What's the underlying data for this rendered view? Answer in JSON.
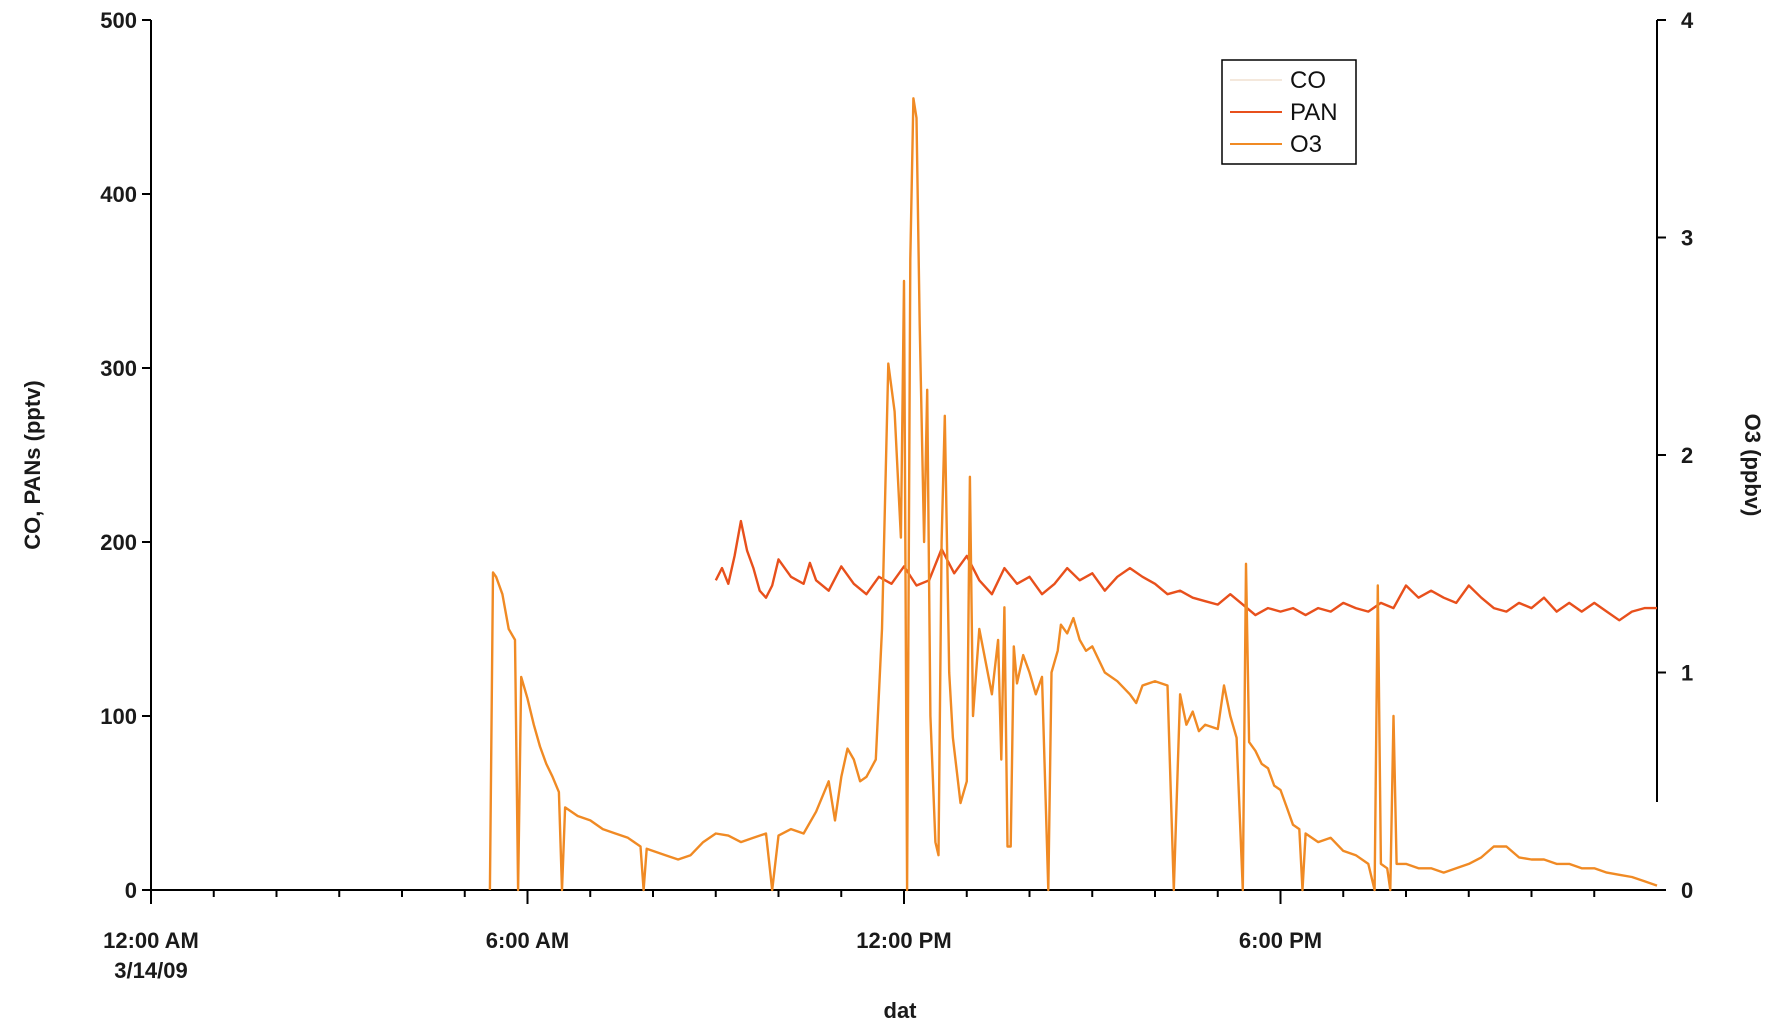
{
  "chart_data": {
    "type": "line",
    "title": "",
    "xlabel": "dat",
    "ylabel_left": "CO, PANs (pptv)",
    "ylabel_right": "O3 (ppbv)",
    "x_range": [
      "2009-03-14 00:00",
      "2009-03-15 00:00"
    ],
    "xlim_hours": [
      0,
      24
    ],
    "ylim_left": [
      0,
      500
    ],
    "ylim_right": [
      0,
      4
    ],
    "x_ticks": [
      {
        "hour": 0,
        "line1": "12:00 AM",
        "line2": "3/14/09"
      },
      {
        "hour": 6,
        "line1": "6:00 AM",
        "line2": ""
      },
      {
        "hour": 12,
        "line1": "12:00 PM",
        "line2": ""
      },
      {
        "hour": 18,
        "line1": "6:00 PM",
        "line2": ""
      }
    ],
    "y_ticks_left": [
      0,
      100,
      200,
      300,
      400,
      500
    ],
    "y_ticks_right": [
      0,
      1,
      2,
      3,
      4
    ],
    "legend": {
      "position": "top-right",
      "entries": [
        "CO",
        "PAN",
        "O3"
      ]
    },
    "series": [
      {
        "name": "CO",
        "axis": "left",
        "color": "#f4e8dc",
        "points": []
      },
      {
        "name": "PAN",
        "axis": "left",
        "color": "#e8501c",
        "points": [
          [
            9.0,
            178
          ],
          [
            9.1,
            185
          ],
          [
            9.2,
            176
          ],
          [
            9.3,
            192
          ],
          [
            9.4,
            212
          ],
          [
            9.5,
            195
          ],
          [
            9.6,
            185
          ],
          [
            9.7,
            172
          ],
          [
            9.8,
            168
          ],
          [
            9.9,
            175
          ],
          [
            10.0,
            190
          ],
          [
            10.2,
            180
          ],
          [
            10.4,
            176
          ],
          [
            10.5,
            188
          ],
          [
            10.6,
            178
          ],
          [
            10.8,
            172
          ],
          [
            11.0,
            186
          ],
          [
            11.2,
            176
          ],
          [
            11.4,
            170
          ],
          [
            11.6,
            180
          ],
          [
            11.8,
            176
          ],
          [
            12.0,
            186
          ],
          [
            12.2,
            175
          ],
          [
            12.4,
            178
          ],
          [
            12.6,
            196
          ],
          [
            12.8,
            182
          ],
          [
            13.0,
            192
          ],
          [
            13.2,
            178
          ],
          [
            13.4,
            170
          ],
          [
            13.6,
            185
          ],
          [
            13.8,
            176
          ],
          [
            14.0,
            180
          ],
          [
            14.2,
            170
          ],
          [
            14.4,
            176
          ],
          [
            14.6,
            185
          ],
          [
            14.8,
            178
          ],
          [
            15.0,
            182
          ],
          [
            15.2,
            172
          ],
          [
            15.4,
            180
          ],
          [
            15.6,
            185
          ],
          [
            15.8,
            180
          ],
          [
            16.0,
            176
          ],
          [
            16.2,
            170
          ],
          [
            16.4,
            172
          ],
          [
            16.6,
            168
          ],
          [
            16.8,
            166
          ],
          [
            17.0,
            164
          ],
          [
            17.2,
            170
          ],
          [
            17.4,
            164
          ],
          [
            17.6,
            158
          ],
          [
            17.8,
            162
          ],
          [
            18.0,
            160
          ],
          [
            18.2,
            162
          ],
          [
            18.4,
            158
          ],
          [
            18.6,
            162
          ],
          [
            18.8,
            160
          ],
          [
            19.0,
            165
          ],
          [
            19.2,
            162
          ],
          [
            19.4,
            160
          ],
          [
            19.6,
            165
          ],
          [
            19.8,
            162
          ],
          [
            20.0,
            175
          ],
          [
            20.2,
            168
          ],
          [
            20.4,
            172
          ],
          [
            20.6,
            168
          ],
          [
            20.8,
            165
          ],
          [
            21.0,
            175
          ],
          [
            21.2,
            168
          ],
          [
            21.4,
            162
          ],
          [
            21.6,
            160
          ],
          [
            21.8,
            165
          ],
          [
            22.0,
            162
          ],
          [
            22.2,
            168
          ],
          [
            22.4,
            160
          ],
          [
            22.6,
            165
          ],
          [
            22.8,
            160
          ],
          [
            23.0,
            165
          ],
          [
            23.2,
            160
          ],
          [
            23.4,
            155
          ],
          [
            23.6,
            160
          ],
          [
            23.8,
            162
          ],
          [
            24.0,
            162
          ]
        ]
      },
      {
        "name": "O3",
        "axis": "right",
        "color": "#f08a24",
        "points": [
          [
            5.4,
            0.0
          ],
          [
            5.45,
            1.46
          ],
          [
            5.5,
            1.44
          ],
          [
            5.6,
            1.36
          ],
          [
            5.7,
            1.2
          ],
          [
            5.8,
            1.15
          ],
          [
            5.85,
            0.0
          ],
          [
            5.9,
            0.98
          ],
          [
            6.0,
            0.88
          ],
          [
            6.1,
            0.76
          ],
          [
            6.2,
            0.66
          ],
          [
            6.3,
            0.58
          ],
          [
            6.4,
            0.52
          ],
          [
            6.5,
            0.45
          ],
          [
            6.55,
            0.0
          ],
          [
            6.6,
            0.38
          ],
          [
            6.8,
            0.34
          ],
          [
            7.0,
            0.32
          ],
          [
            7.2,
            0.28
          ],
          [
            7.4,
            0.26
          ],
          [
            7.6,
            0.24
          ],
          [
            7.8,
            0.2
          ],
          [
            7.85,
            0.0
          ],
          [
            7.9,
            0.19
          ],
          [
            8.2,
            0.16
          ],
          [
            8.4,
            0.14
          ],
          [
            8.6,
            0.16
          ],
          [
            8.8,
            0.22
          ],
          [
            9.0,
            0.26
          ],
          [
            9.2,
            0.25
          ],
          [
            9.4,
            0.22
          ],
          [
            9.6,
            0.24
          ],
          [
            9.8,
            0.26
          ],
          [
            9.9,
            0.0
          ],
          [
            10.0,
            0.25
          ],
          [
            10.2,
            0.28
          ],
          [
            10.4,
            0.26
          ],
          [
            10.6,
            0.36
          ],
          [
            10.8,
            0.5
          ],
          [
            10.9,
            0.32
          ],
          [
            11.0,
            0.52
          ],
          [
            11.1,
            0.65
          ],
          [
            11.2,
            0.6
          ],
          [
            11.3,
            0.5
          ],
          [
            11.4,
            0.52
          ],
          [
            11.55,
            0.6
          ],
          [
            11.65,
            1.2
          ],
          [
            11.75,
            2.42
          ],
          [
            11.85,
            2.2
          ],
          [
            11.95,
            1.62
          ],
          [
            12.0,
            2.8
          ],
          [
            12.05,
            0.0
          ],
          [
            12.1,
            2.9
          ],
          [
            12.15,
            3.64
          ],
          [
            12.2,
            3.55
          ],
          [
            12.25,
            2.6
          ],
          [
            12.32,
            1.6
          ],
          [
            12.37,
            2.3
          ],
          [
            12.42,
            0.8
          ],
          [
            12.5,
            0.22
          ],
          [
            12.55,
            0.16
          ],
          [
            12.6,
            1.6
          ],
          [
            12.65,
            2.18
          ],
          [
            12.72,
            1.0
          ],
          [
            12.78,
            0.7
          ],
          [
            12.84,
            0.55
          ],
          [
            12.9,
            0.4
          ],
          [
            13.0,
            0.5
          ],
          [
            13.05,
            1.9
          ],
          [
            13.1,
            0.8
          ],
          [
            13.2,
            1.2
          ],
          [
            13.3,
            1.05
          ],
          [
            13.4,
            0.9
          ],
          [
            13.5,
            1.15
          ],
          [
            13.55,
            0.6
          ],
          [
            13.6,
            1.3
          ],
          [
            13.65,
            0.2
          ],
          [
            13.7,
            0.2
          ],
          [
            13.75,
            1.12
          ],
          [
            13.8,
            0.95
          ],
          [
            13.9,
            1.08
          ],
          [
            14.0,
            1.0
          ],
          [
            14.1,
            0.9
          ],
          [
            14.2,
            0.98
          ],
          [
            14.3,
            0.0
          ],
          [
            14.35,
            1.0
          ],
          [
            14.45,
            1.1
          ],
          [
            14.5,
            1.22
          ],
          [
            14.6,
            1.18
          ],
          [
            14.7,
            1.25
          ],
          [
            14.8,
            1.15
          ],
          [
            14.9,
            1.1
          ],
          [
            15.0,
            1.12
          ],
          [
            15.2,
            1.0
          ],
          [
            15.4,
            0.96
          ],
          [
            15.6,
            0.9
          ],
          [
            15.7,
            0.86
          ],
          [
            15.8,
            0.94
          ],
          [
            16.0,
            0.96
          ],
          [
            16.2,
            0.94
          ],
          [
            16.3,
            0.0
          ],
          [
            16.4,
            0.9
          ],
          [
            16.5,
            0.76
          ],
          [
            16.6,
            0.82
          ],
          [
            16.7,
            0.73
          ],
          [
            16.8,
            0.76
          ],
          [
            17.0,
            0.74
          ],
          [
            17.1,
            0.94
          ],
          [
            17.2,
            0.8
          ],
          [
            17.3,
            0.7
          ],
          [
            17.4,
            0.0
          ],
          [
            17.45,
            1.5
          ],
          [
            17.5,
            0.68
          ],
          [
            17.6,
            0.64
          ],
          [
            17.7,
            0.58
          ],
          [
            17.8,
            0.56
          ],
          [
            17.9,
            0.48
          ],
          [
            18.0,
            0.46
          ],
          [
            18.1,
            0.38
          ],
          [
            18.2,
            0.3
          ],
          [
            18.3,
            0.28
          ],
          [
            18.35,
            0.0
          ],
          [
            18.4,
            0.26
          ],
          [
            18.6,
            0.22
          ],
          [
            18.8,
            0.24
          ],
          [
            19.0,
            0.18
          ],
          [
            19.2,
            0.16
          ],
          [
            19.4,
            0.12
          ],
          [
            19.5,
            0.0
          ],
          [
            19.55,
            1.4
          ],
          [
            19.6,
            0.12
          ],
          [
            19.7,
            0.1
          ],
          [
            19.75,
            0.0
          ],
          [
            19.8,
            0.8
          ],
          [
            19.85,
            0.12
          ],
          [
            20.0,
            0.12
          ],
          [
            20.2,
            0.1
          ],
          [
            20.4,
            0.1
          ],
          [
            20.6,
            0.08
          ],
          [
            20.8,
            0.1
          ],
          [
            21.0,
            0.12
          ],
          [
            21.2,
            0.15
          ],
          [
            21.4,
            0.2
          ],
          [
            21.6,
            0.2
          ],
          [
            21.8,
            0.15
          ],
          [
            22.0,
            0.14
          ],
          [
            22.2,
            0.14
          ],
          [
            22.4,
            0.12
          ],
          [
            22.6,
            0.12
          ],
          [
            22.8,
            0.1
          ],
          [
            23.0,
            0.1
          ],
          [
            23.2,
            0.08
          ],
          [
            23.4,
            0.07
          ],
          [
            23.6,
            0.06
          ],
          [
            23.8,
            0.04
          ],
          [
            24.0,
            0.02
          ]
        ]
      }
    ]
  }
}
